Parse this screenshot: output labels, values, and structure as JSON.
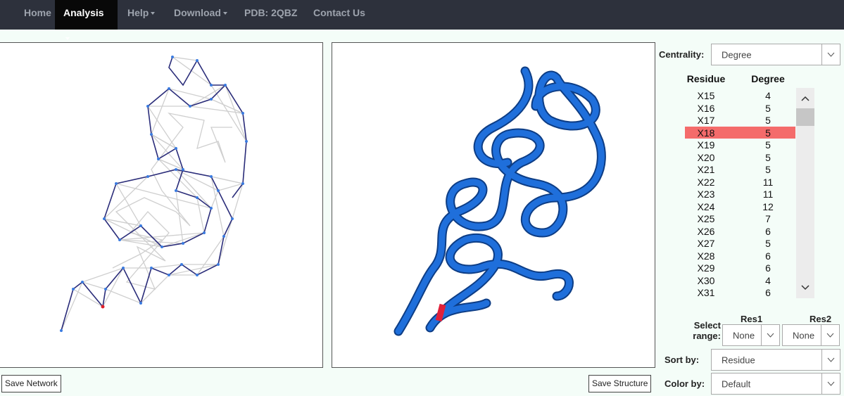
{
  "nav": {
    "items": [
      "Home",
      "Analysis",
      "Help",
      "Download",
      "PDB: 2QBZ",
      "Contact Us"
    ]
  },
  "buttons": {
    "save_network": "Save Network",
    "save_structure": "Save Structure"
  },
  "controls": {
    "centrality": {
      "label": "Centrality:",
      "value": "Degree"
    },
    "select_range": {
      "label": "Select range:",
      "res1_label": "Res1",
      "res1_value": "None",
      "res2_label": "Res2",
      "res2_value": "None"
    },
    "sort_by": {
      "label": "Sort by:",
      "value": "Residue"
    },
    "color_by": {
      "label": "Color by:",
      "value": "Default"
    }
  },
  "table": {
    "columns": [
      "Residue",
      "Degree"
    ],
    "rows": [
      [
        "X15",
        4
      ],
      [
        "X16",
        5
      ],
      [
        "X17",
        5
      ],
      [
        "X18",
        5
      ],
      [
        "X19",
        5
      ],
      [
        "X20",
        5
      ],
      [
        "X21",
        5
      ],
      [
        "X22",
        11
      ],
      [
        "X23",
        11
      ],
      [
        "X24",
        12
      ],
      [
        "X25",
        7
      ],
      [
        "X26",
        6
      ],
      [
        "X27",
        5
      ],
      [
        "X28",
        6
      ],
      [
        "X29",
        6
      ],
      [
        "X30",
        4
      ],
      [
        "X31",
        6
      ]
    ]
  }
}
